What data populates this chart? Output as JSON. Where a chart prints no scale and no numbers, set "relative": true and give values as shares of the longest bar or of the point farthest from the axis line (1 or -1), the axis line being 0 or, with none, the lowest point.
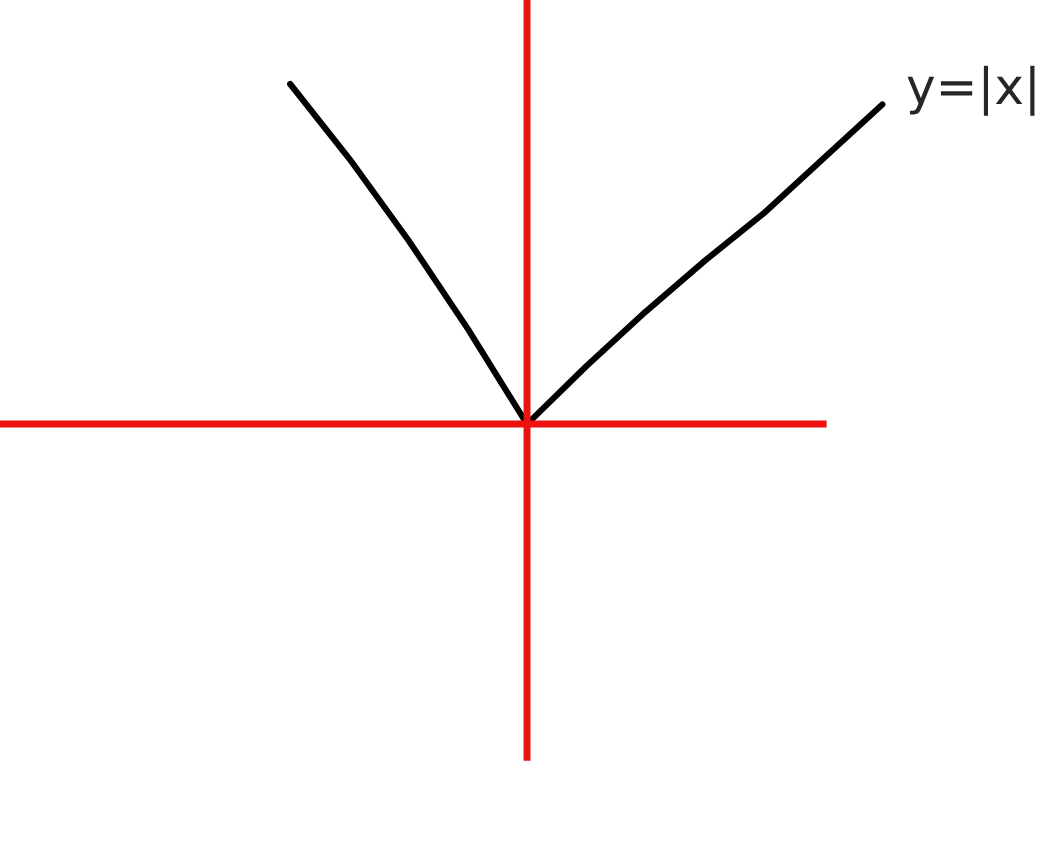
{
  "chart_data": {
    "type": "line",
    "relative": true,
    "categories": [
      null,
      null,
      null,
      null,
      null,
      null,
      null,
      null,
      null,
      null,
      null
    ],
    "series": [
      {
        "color": "#000000",
        "values": [
          1,
          0.78,
          0.54,
          0.28,
          0,
          0.17,
          0.33,
          0.48,
          0.62,
          0.78,
          0.94
        ]
      }
    ],
    "annotations": [
      "y=|x|"
    ]
  }
}
